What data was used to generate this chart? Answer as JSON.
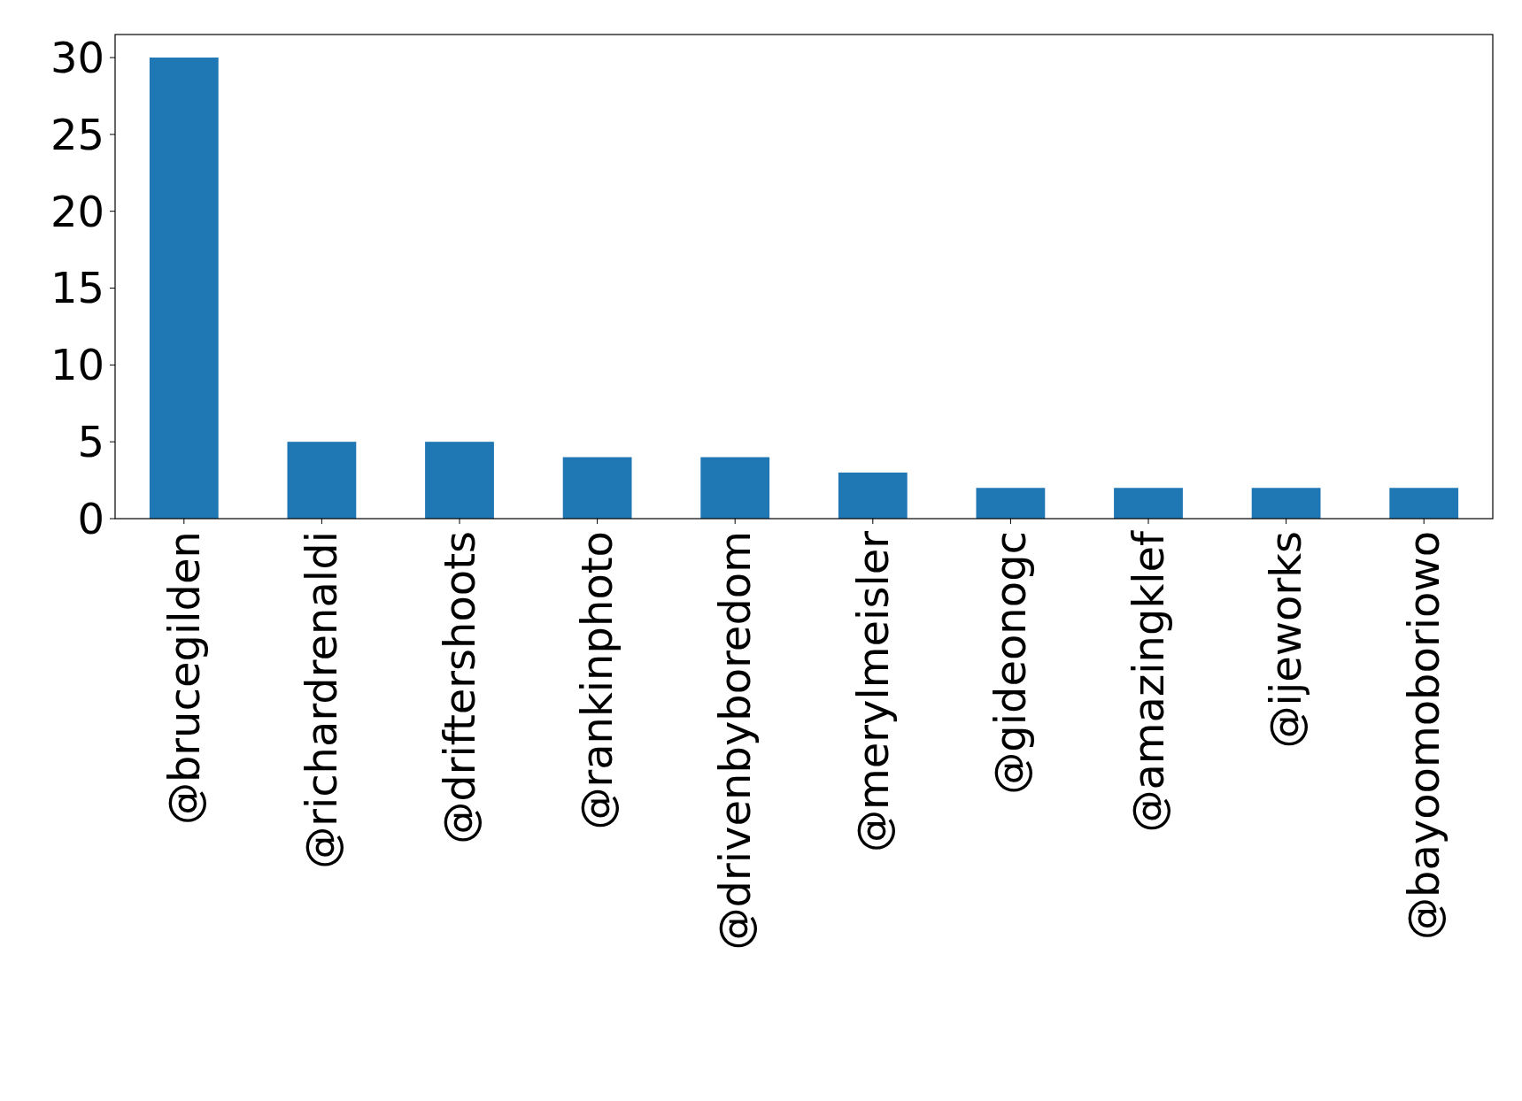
{
  "chart_data": {
    "type": "bar",
    "categories": [
      "@brucegilden",
      "@richardrenaldi",
      "@driftershoots",
      "@rankinphoto",
      "@drivenbyboredom",
      "@merylmeisler",
      "@gideonogc",
      "@amazingklef",
      "@ijeworks",
      "@bayoomoboriowo"
    ],
    "values": [
      30,
      5,
      5,
      4,
      4,
      3,
      2,
      2,
      2,
      2
    ],
    "color": "#1f77b4",
    "ylim": [
      0,
      31.5
    ],
    "yticks": [
      0,
      5,
      10,
      15,
      20,
      25,
      30
    ],
    "grid": false
  }
}
